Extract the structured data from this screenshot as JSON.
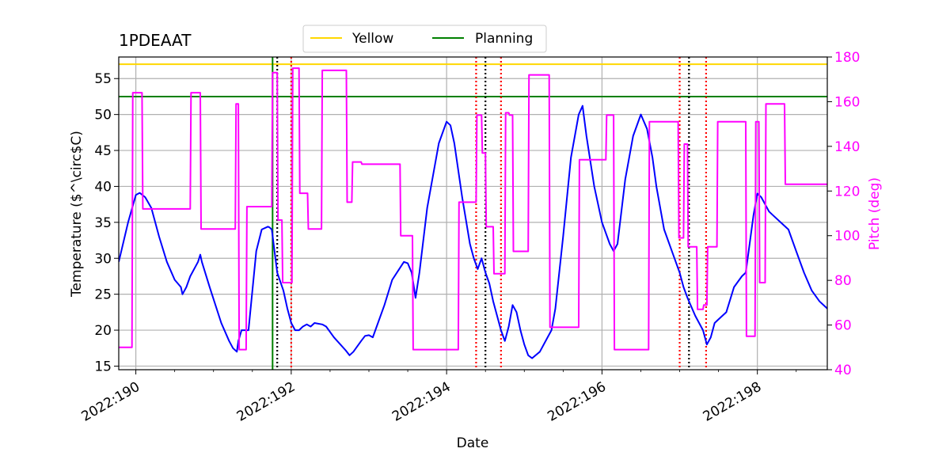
{
  "chart_data": {
    "type": "line",
    "title": "1PDEAAT",
    "xlabel": "Date",
    "ylabel": "Temperature ($^\\circ$C)",
    "ylabel_display": "Temperature ($^\\circ$C)",
    "y2label": "Pitch (deg)",
    "xlim": [
      189.78,
      198.9
    ],
    "ylim": [
      14.5,
      58
    ],
    "y2lim": [
      40,
      180
    ],
    "x_ticks": [
      190,
      192,
      194,
      196,
      198
    ],
    "x_tick_labels": [
      "2022:190",
      "2022:192",
      "2022:194",
      "2022:196",
      "2022:198"
    ],
    "y_ticks": [
      15,
      20,
      25,
      30,
      35,
      40,
      45,
      50,
      55
    ],
    "y_tick_labels": [
      "15",
      "20",
      "25",
      "30",
      "35",
      "40",
      "45",
      "50",
      "55"
    ],
    "y2_ticks": [
      40,
      60,
      80,
      100,
      120,
      140,
      160,
      180
    ],
    "y2_tick_labels": [
      "40",
      "60",
      "80",
      "100",
      "120",
      "140",
      "160",
      "180"
    ],
    "grid": true,
    "legend": {
      "placement": "top-center",
      "entries": [
        {
          "label": "Yellow",
          "color": "#ffd700"
        },
        {
          "label": "Planning",
          "color": "#008000"
        }
      ]
    },
    "limits": {
      "yellow": 57.0,
      "planning": 52.5
    },
    "planning_vline_x": 191.76,
    "black_dotted_x": [
      191.82,
      194.5,
      197.12
    ],
    "red_dotted_x": [
      192.0,
      194.38,
      194.7,
      197.0,
      197.34
    ],
    "series": [
      {
        "name": "1PDEAAT temperature",
        "axis": "left",
        "color": "#0000ff",
        "x": [
          189.78,
          189.9,
          190.0,
          190.05,
          190.12,
          190.2,
          190.3,
          190.4,
          190.5,
          190.58,
          190.6,
          190.65,
          190.7,
          190.8,
          190.83,
          190.85,
          190.95,
          191.1,
          191.2,
          191.25,
          191.3,
          191.32,
          191.36,
          191.45,
          191.55,
          191.62,
          191.7,
          191.72,
          191.75,
          191.82,
          191.9,
          191.95,
          192.0,
          192.05,
          192.1,
          192.15,
          192.2,
          192.25,
          192.3,
          192.4,
          192.45,
          192.55,
          192.7,
          192.75,
          192.8,
          192.9,
          192.95,
          193.0,
          193.05,
          193.2,
          193.3,
          193.45,
          193.5,
          193.55,
          193.6,
          193.65,
          193.75,
          193.9,
          194.0,
          194.05,
          194.1,
          194.2,
          194.3,
          194.35,
          194.4,
          194.45,
          194.5,
          194.55,
          194.6,
          194.65,
          194.7,
          194.75,
          194.8,
          194.85,
          194.9,
          194.95,
          195.0,
          195.05,
          195.1,
          195.2,
          195.3,
          195.35,
          195.4,
          195.5,
          195.6,
          195.7,
          195.75,
          195.8,
          195.9,
          196.0,
          196.1,
          196.15,
          196.2,
          196.3,
          196.4,
          196.5,
          196.58,
          196.65,
          196.7,
          196.8,
          196.9,
          197.0,
          197.05,
          197.1,
          197.2,
          197.3,
          197.35,
          197.4,
          197.45,
          197.5,
          197.6,
          197.7,
          197.8,
          197.85,
          197.9,
          197.95,
          198.0,
          198.05,
          198.15,
          198.2,
          198.35,
          198.4,
          198.5,
          198.6,
          198.7,
          198.8,
          198.9
        ],
        "values": [
          29.5,
          35.0,
          38.8,
          39.1,
          38.5,
          37.0,
          33.0,
          29.5,
          27.0,
          26.0,
          25.0,
          26.0,
          27.5,
          29.5,
          30.5,
          29.5,
          26.0,
          21.0,
          18.5,
          17.5,
          17.0,
          18.5,
          20.0,
          20.0,
          31.0,
          34.0,
          34.4,
          34.3,
          34.0,
          28.0,
          25.5,
          23.0,
          21.0,
          20.0,
          20.0,
          20.5,
          20.8,
          20.5,
          21.0,
          20.8,
          20.5,
          19.0,
          17.2,
          16.5,
          17.0,
          18.5,
          19.2,
          19.3,
          19.0,
          23.5,
          27.0,
          29.5,
          29.3,
          28.0,
          24.5,
          28.0,
          37.0,
          46.0,
          49.0,
          48.5,
          46.0,
          38.5,
          32.0,
          30.0,
          28.5,
          30.0,
          28.0,
          26.5,
          24.0,
          22.0,
          20.0,
          18.5,
          20.5,
          23.5,
          22.5,
          20.0,
          18.0,
          16.5,
          16.1,
          17.0,
          19.0,
          20.0,
          23.0,
          33.0,
          44.0,
          50.0,
          51.2,
          47.0,
          40.0,
          35.0,
          32.0,
          31.0,
          32.0,
          41.0,
          47.0,
          50.0,
          48.0,
          44.0,
          40.0,
          34.0,
          31.0,
          28.0,
          26.0,
          24.5,
          22.0,
          20.0,
          18.0,
          19.0,
          21.0,
          21.5,
          22.5,
          26.0,
          27.5,
          28.0,
          32.0,
          36.0,
          39.0,
          38.5,
          36.5,
          36.0,
          34.5,
          34.0,
          31.0,
          28.0,
          25.5,
          24.0,
          23.0
        ]
      },
      {
        "name": "Pitch",
        "axis": "right",
        "color": "#ff00ff",
        "x": [
          189.78,
          189.95,
          189.96,
          190.08,
          190.09,
          190.7,
          190.71,
          190.83,
          190.84,
          191.28,
          191.29,
          191.32,
          191.33,
          191.42,
          191.43,
          191.75,
          191.76,
          191.82,
          191.83,
          191.88,
          191.89,
          192.01,
          192.02,
          192.1,
          192.11,
          192.21,
          192.22,
          192.39,
          192.4,
          192.71,
          192.72,
          192.78,
          192.79,
          192.9,
          192.91,
          193.4,
          193.41,
          193.56,
          193.57,
          194.15,
          194.16,
          194.38,
          194.39,
          194.45,
          194.46,
          194.5,
          194.51,
          194.6,
          194.61,
          194.75,
          194.76,
          194.8,
          194.81,
          194.85,
          194.86,
          195.05,
          195.06,
          195.32,
          195.33,
          195.7,
          195.71,
          196.05,
          196.06,
          196.15,
          196.16,
          196.32,
          196.33,
          196.6,
          196.61,
          196.98,
          196.99,
          197.05,
          197.06,
          197.1,
          197.11,
          197.22,
          197.23,
          197.3,
          197.31,
          197.35,
          197.36,
          197.48,
          197.49,
          197.85,
          197.86,
          197.97,
          197.98,
          198.02,
          198.03,
          198.1,
          198.11,
          198.16,
          198.17,
          198.35,
          198.36,
          198.9
        ],
        "values": [
          50,
          50,
          164,
          164,
          112,
          112,
          164,
          164,
          103,
          103,
          159,
          159,
          49,
          49,
          113,
          113,
          173,
          173,
          107,
          107,
          79,
          79,
          175,
          175,
          119,
          119,
          103,
          103,
          174,
          174,
          115,
          115,
          133,
          133,
          132,
          132,
          100,
          100,
          49,
          49,
          115,
          115,
          154,
          154,
          137,
          137,
          104,
          104,
          83,
          83,
          155,
          155,
          154,
          154,
          93,
          93,
          172,
          172,
          59,
          59,
          134,
          134,
          154,
          154,
          49,
          49,
          49,
          49,
          151,
          151,
          99,
          99,
          141,
          141,
          95,
          95,
          67,
          67,
          69,
          69,
          95,
          95,
          151,
          151,
          55,
          55,
          151,
          151,
          79,
          79,
          159,
          159,
          159,
          159,
          123,
          123
        ]
      }
    ]
  }
}
